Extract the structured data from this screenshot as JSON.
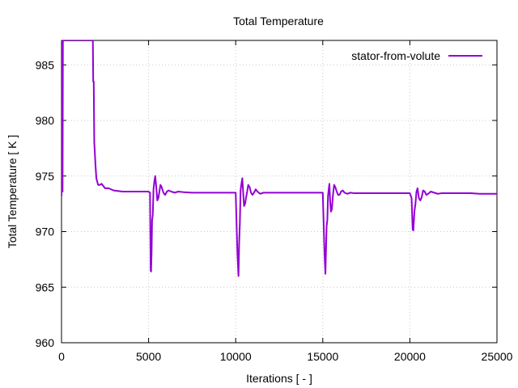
{
  "chart_data": {
    "type": "line",
    "title": "Total Temperature",
    "xlabel": "Iterations [ - ]",
    "ylabel": "Total Temperature [ K ]",
    "xlim": [
      0,
      25000
    ],
    "ylim": [
      960,
      987.2
    ],
    "grid": true,
    "legend_position": "top-right",
    "x_ticks": [
      0,
      5000,
      10000,
      15000,
      20000,
      25000
    ],
    "x_tick_labels": [
      "0",
      "5000",
      "10000",
      "15000",
      "20000",
      "25000"
    ],
    "y_ticks": [
      960,
      965,
      970,
      975,
      980,
      985
    ],
    "y_tick_labels": [
      "960",
      "965",
      "970",
      "975",
      "980",
      "985"
    ],
    "series": [
      {
        "name": "stator-from-volute",
        "color": "#9400d3",
        "x": [
          0,
          20,
          40,
          60,
          80,
          100,
          1800,
          1820,
          1850,
          1880,
          1900,
          1950,
          2000,
          2100,
          2200,
          2300,
          2500,
          2700,
          3000,
          3500,
          4000,
          4500,
          5000,
          5080,
          5120,
          5140,
          5170,
          5200,
          5240,
          5280,
          5330,
          5380,
          5440,
          5500,
          5560,
          5620,
          5680,
          5750,
          5850,
          5950,
          6050,
          6150,
          6300,
          6500,
          6700,
          7000,
          7500,
          8000,
          9000,
          10000,
          10100,
          10160,
          10200,
          10240,
          10280,
          10330,
          10380,
          10430,
          10480,
          10540,
          10600,
          10660,
          10720,
          10800,
          10880,
          10960,
          11050,
          11150,
          11250,
          11400,
          11600,
          11800,
          12000,
          12500,
          13000,
          14000,
          15000,
          15100,
          15150,
          15180,
          15220,
          15260,
          15300,
          15340,
          15380,
          15420,
          15470,
          15520,
          15580,
          15650,
          15720,
          15800,
          15880,
          15960,
          16050,
          16150,
          16250,
          16400,
          16600,
          16800,
          17000,
          17500,
          18000,
          19000,
          20000,
          20100,
          20160,
          20200,
          20260,
          20320,
          20380,
          20440,
          20520,
          20600,
          20680,
          20760,
          20850,
          20950,
          21050,
          21200,
          21400,
          21600,
          21800,
          22000,
          22500,
          23000,
          23500,
          24000,
          24500,
          25000
        ],
        "values": [
          973.2,
          987.2,
          975.0,
          973.6,
          987.2,
          987.2,
          987.2,
          983.5,
          983.5,
          978.0,
          977.5,
          976.0,
          974.8,
          974.2,
          974.2,
          974.3,
          973.9,
          973.9,
          973.7,
          973.6,
          973.6,
          973.6,
          973.6,
          973.5,
          966.5,
          966.4,
          968.0,
          971.0,
          971.5,
          973.8,
          974.5,
          975.0,
          974.0,
          972.8,
          973.0,
          973.6,
          974.2,
          974.0,
          973.5,
          973.3,
          973.6,
          973.7,
          973.6,
          973.5,
          973.6,
          973.55,
          973.5,
          973.5,
          973.5,
          973.5,
          968.0,
          966.0,
          969.0,
          970.8,
          973.7,
          974.3,
          974.8,
          973.5,
          972.3,
          972.5,
          973.1,
          973.6,
          974.2,
          974.0,
          973.5,
          973.3,
          973.5,
          973.8,
          973.6,
          973.4,
          973.5,
          973.5,
          973.5,
          973.5,
          973.5,
          973.5,
          973.5,
          968.0,
          966.2,
          968.0,
          970.5,
          971.0,
          973.2,
          973.8,
          974.3,
          972.8,
          971.8,
          972.0,
          973.2,
          974.2,
          974.0,
          973.6,
          973.3,
          973.3,
          973.6,
          973.7,
          973.5,
          973.4,
          973.5,
          973.45,
          973.45,
          973.45,
          973.45,
          973.45,
          973.45,
          973.0,
          970.2,
          970.1,
          971.8,
          972.5,
          973.6,
          973.9,
          973.0,
          972.8,
          973.1,
          973.7,
          973.6,
          973.3,
          973.4,
          973.6,
          973.5,
          973.4,
          973.45,
          973.45,
          973.45,
          973.45,
          973.45,
          973.4,
          973.4,
          973.4
        ]
      }
    ]
  }
}
